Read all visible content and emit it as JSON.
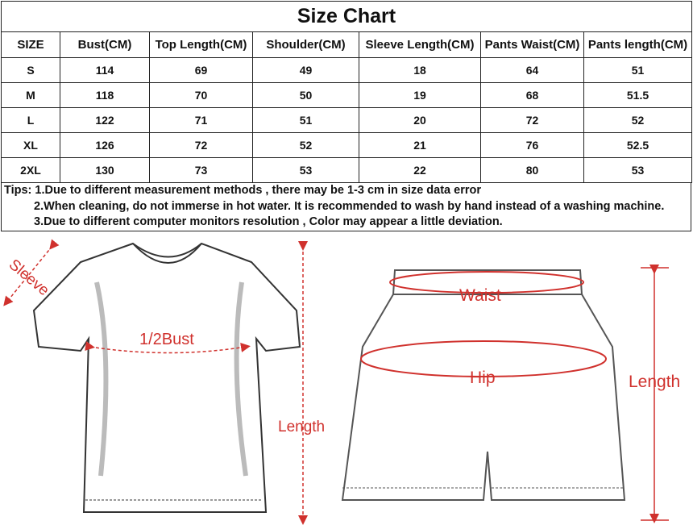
{
  "title": "Size Chart",
  "headers": [
    "SIZE",
    "Bust(CM)",
    "Top Length(CM)",
    "Shoulder(CM)",
    "Sleeve Length(CM)",
    "Pants Waist(CM)",
    "Pants length(CM)"
  ],
  "rows": [
    [
      "S",
      "114",
      "69",
      "49",
      "18",
      "64",
      "51"
    ],
    [
      "M",
      "118",
      "70",
      "50",
      "19",
      "68",
      "51.5"
    ],
    [
      "L",
      "122",
      "71",
      "51",
      "20",
      "72",
      "52"
    ],
    [
      "XL",
      "126",
      "72",
      "52",
      "21",
      "76",
      "52.5"
    ],
    [
      "2XL",
      "130",
      "73",
      "53",
      "22",
      "80",
      "53"
    ]
  ],
  "tips": [
    "Tips: 1.Due to different measurement methods , there may be 1-3 cm in size data error",
    "2.When cleaning, do not immerse in hot water. It is recommended to wash by hand instead of a washing machine.",
    "3.Due to different computer monitors resolution , Color may appear a little deviation."
  ],
  "diagram": {
    "tshirt": {
      "sleeve": "Sleeve",
      "bust": "1/2Bust",
      "length": "Length"
    },
    "shorts": {
      "waist": "Waist",
      "hip": "Hip",
      "length": "Length"
    },
    "accent_color": "#d0312d"
  }
}
